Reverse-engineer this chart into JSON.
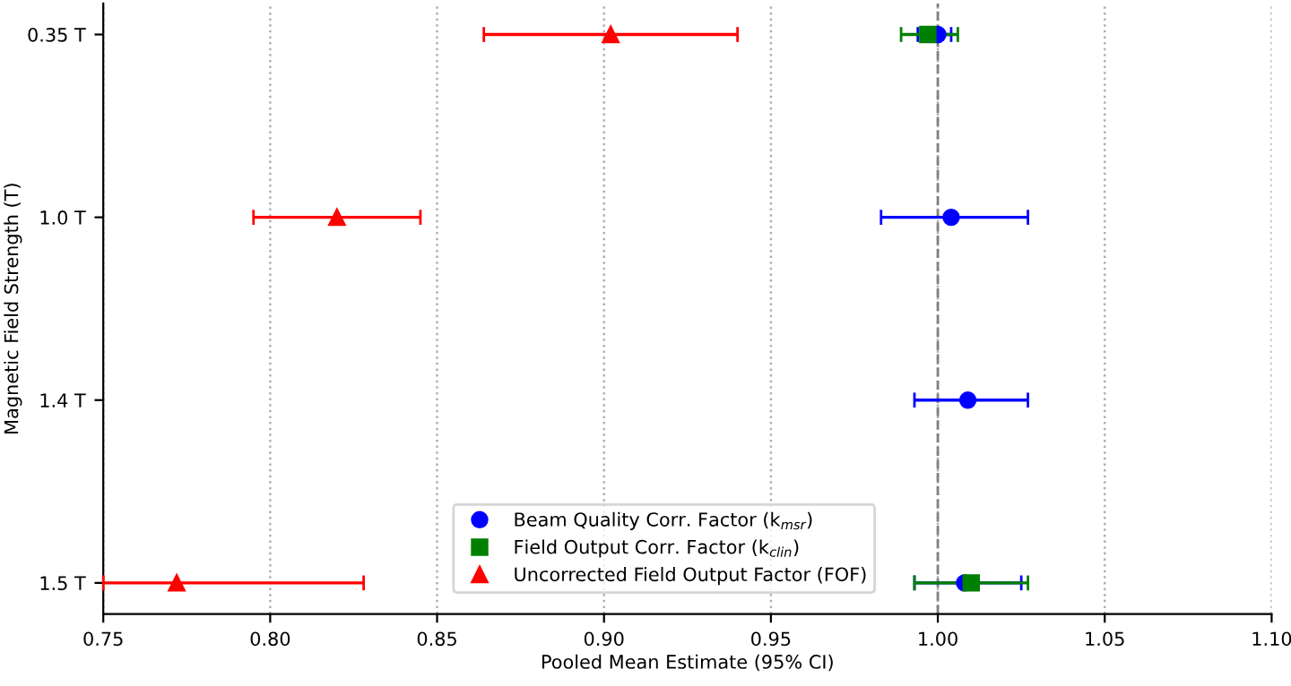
{
  "chart_data": {
    "type": "scatter",
    "orientation": "horizontal",
    "xlabel": "Pooled Mean Estimate (95% CI)",
    "ylabel": "Magnetic Field Strength (T)",
    "categories": [
      "0.35 T",
      "1.0 T",
      "1.4 T",
      "1.5 T"
    ],
    "series": [
      {
        "name": "Beam Quality Corr. Factor (k$_{msr}$)",
        "color": "#0000ff",
        "marker": "circle",
        "values": [
          1.0,
          1.004,
          1.009,
          1.008
        ],
        "errors": [
          [
            0.994,
            1.004
          ],
          [
            0.983,
            1.027
          ],
          [
            0.993,
            1.027
          ],
          [
            0.993,
            1.025
          ]
        ]
      },
      {
        "name": "Field Output Corr. Factor (k$_{clin}$)",
        "color": "#008000",
        "marker": "square",
        "values": [
          0.997,
          null,
          null,
          1.01
        ],
        "errors": [
          [
            0.989,
            1.006
          ],
          null,
          null,
          [
            0.993,
            1.027
          ]
        ]
      },
      {
        "name": "Uncorrected Field Output Factor (FOF)",
        "color": "#ff0000",
        "marker": "triangle",
        "values": [
          0.902,
          0.82,
          null,
          0.772
        ],
        "errors": [
          [
            0.864,
            0.94
          ],
          [
            0.795,
            0.845
          ],
          null,
          [
            0.75,
            0.828
          ]
        ]
      }
    ],
    "xlim": [
      0.75,
      1.1
    ],
    "xticks": [
      {
        "value": 0.75,
        "label": "0.75"
      },
      {
        "value": 0.8,
        "label": "0.80"
      },
      {
        "value": 0.85,
        "label": "0.85"
      },
      {
        "value": 0.9,
        "label": "0.90"
      },
      {
        "value": 0.95,
        "label": "0.95"
      },
      {
        "value": 1.0,
        "label": "1.00"
      },
      {
        "value": 1.05,
        "label": "1.05"
      },
      {
        "value": 1.1,
        "label": "1.10"
      }
    ],
    "ref_lines": [
      {
        "axis": "x",
        "value": 1.0,
        "color": "#808080",
        "line_style": "dashed"
      }
    ],
    "grid": "x",
    "legend": "bottom"
  }
}
